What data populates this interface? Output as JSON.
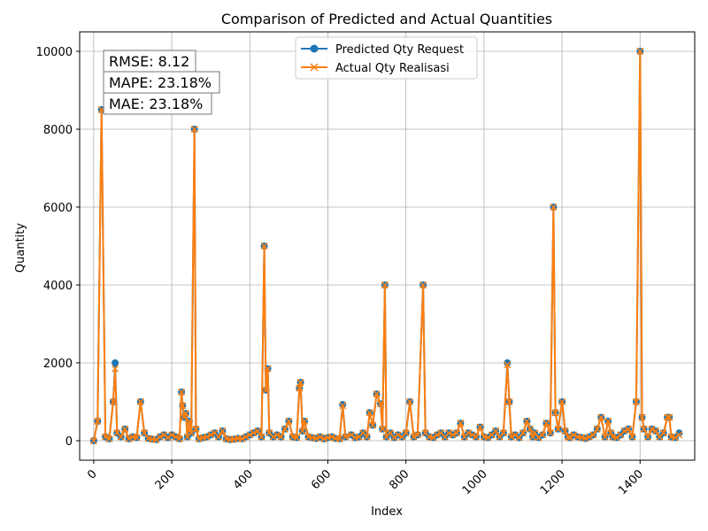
{
  "chart_data": {
    "type": "line",
    "title": "Comparison of Predicted and Actual Quantities",
    "xlabel": "Index",
    "ylabel": "Quantity",
    "xlim": [
      -36,
      1540
    ],
    "ylim": [
      -500,
      10500
    ],
    "xticks": [
      0,
      200,
      400,
      600,
      800,
      1000,
      1200,
      1400
    ],
    "yticks": [
      0,
      2000,
      4000,
      6000,
      8000,
      10000
    ],
    "grid": true,
    "legend_position": "top-center",
    "annotations": [
      "RMSE: 8.12",
      "MAPE: 23.18%",
      "MAE: 23.18%"
    ],
    "series": [
      {
        "name": "Predicted Qty Request",
        "color": "#1f77b4",
        "marker": "circle"
      },
      {
        "name": "Actual Qty Realisasi",
        "color": "#ff7f0e",
        "marker": "x"
      }
    ],
    "x": [
      0,
      10,
      20,
      30,
      40,
      50,
      55,
      60,
      70,
      80,
      90,
      100,
      110,
      120,
      130,
      140,
      150,
      160,
      170,
      180,
      190,
      200,
      210,
      220,
      225,
      228,
      232,
      236,
      240,
      245,
      250,
      258,
      262,
      270,
      280,
      290,
      300,
      310,
      320,
      330,
      340,
      350,
      360,
      370,
      380,
      390,
      400,
      410,
      420,
      430,
      437,
      441,
      446,
      450,
      460,
      470,
      480,
      490,
      500,
      510,
      520,
      527,
      530,
      535,
      540,
      550,
      560,
      570,
      580,
      590,
      600,
      610,
      620,
      630,
      638,
      645,
      660,
      670,
      680,
      690,
      700,
      707,
      715,
      725,
      735,
      740,
      746,
      750,
      760,
      770,
      780,
      790,
      800,
      810,
      820,
      830,
      844,
      850,
      860,
      870,
      880,
      890,
      900,
      910,
      920,
      930,
      940,
      950,
      960,
      970,
      980,
      990,
      1000,
      1010,
      1020,
      1030,
      1040,
      1050,
      1060,
      1065,
      1070,
      1080,
      1090,
      1100,
      1110,
      1118,
      1125,
      1130,
      1140,
      1150,
      1160,
      1170,
      1178,
      1183,
      1190,
      1200,
      1208,
      1215,
      1220,
      1230,
      1240,
      1250,
      1260,
      1270,
      1280,
      1290,
      1300,
      1310,
      1318,
      1325,
      1330,
      1340,
      1350,
      1360,
      1370,
      1380,
      1390,
      1400,
      1405,
      1410,
      1420,
      1430,
      1440,
      1450,
      1460,
      1470,
      1475,
      1480,
      1490,
      1500
    ],
    "predicted": [
      0,
      500,
      8500,
      100,
      50,
      1000,
      2000,
      200,
      100,
      300,
      50,
      100,
      80,
      1000,
      200,
      60,
      40,
      30,
      100,
      150,
      80,
      150,
      100,
      50,
      1250,
      900,
      600,
      700,
      100,
      500,
      200,
      8000,
      300,
      50,
      80,
      100,
      150,
      200,
      100,
      250,
      50,
      30,
      40,
      60,
      50,
      100,
      150,
      200,
      250,
      100,
      5000,
      1300,
      1850,
      200,
      100,
      150,
      100,
      300,
      500,
      100,
      80,
      1350,
      1500,
      250,
      500,
      100,
      80,
      60,
      100,
      50,
      80,
      100,
      60,
      50,
      930,
      100,
      150,
      80,
      100,
      200,
      100,
      720,
      400,
      1200,
      950,
      300,
      4000,
      100,
      200,
      80,
      150,
      100,
      200,
      1000,
      100,
      150,
      4000,
      200,
      100,
      80,
      150,
      200,
      100,
      200,
      150,
      200,
      450,
      100,
      200,
      150,
      100,
      350,
      100,
      80,
      150,
      250,
      100,
      200,
      2000,
      1000,
      100,
      150,
      80,
      200,
      500,
      300,
      100,
      200,
      80,
      150,
      450,
      200,
      6000,
      720,
      300,
      1000,
      250,
      100,
      80,
      150,
      100,
      80,
      60,
      100,
      150,
      300,
      600,
      100,
      500,
      200,
      100,
      80,
      150,
      250,
      300,
      100,
      1000,
      10000,
      600,
      300,
      100,
      300,
      250,
      100,
      200,
      600,
      600,
      100,
      80,
      200
    ],
    "actual": [
      0,
      500,
      8500,
      100,
      50,
      1000,
      1850,
      200,
      100,
      300,
      50,
      100,
      80,
      1000,
      200,
      60,
      40,
      30,
      100,
      150,
      80,
      150,
      100,
      50,
      1250,
      900,
      600,
      700,
      100,
      500,
      200,
      8000,
      300,
      50,
      80,
      100,
      150,
      200,
      100,
      250,
      50,
      30,
      40,
      60,
      50,
      100,
      150,
      200,
      250,
      100,
      5000,
      1300,
      1850,
      200,
      100,
      150,
      100,
      300,
      500,
      100,
      80,
      1350,
      1500,
      250,
      500,
      100,
      80,
      60,
      100,
      50,
      80,
      100,
      60,
      50,
      900,
      100,
      150,
      80,
      100,
      200,
      100,
      720,
      400,
      1200,
      950,
      300,
      4000,
      100,
      200,
      80,
      150,
      100,
      200,
      1000,
      100,
      150,
      4000,
      200,
      100,
      80,
      150,
      200,
      100,
      200,
      150,
      200,
      450,
      100,
      200,
      150,
      100,
      350,
      100,
      80,
      150,
      250,
      100,
      200,
      1950,
      1000,
      100,
      150,
      80,
      200,
      500,
      300,
      100,
      200,
      80,
      150,
      450,
      200,
      6000,
      720,
      300,
      1000,
      250,
      100,
      80,
      150,
      100,
      80,
      60,
      100,
      150,
      300,
      600,
      100,
      500,
      200,
      100,
      80,
      150,
      250,
      300,
      100,
      1000,
      10000,
      600,
      300,
      100,
      300,
      250,
      100,
      200,
      600,
      600,
      100,
      80,
      150
    ]
  }
}
